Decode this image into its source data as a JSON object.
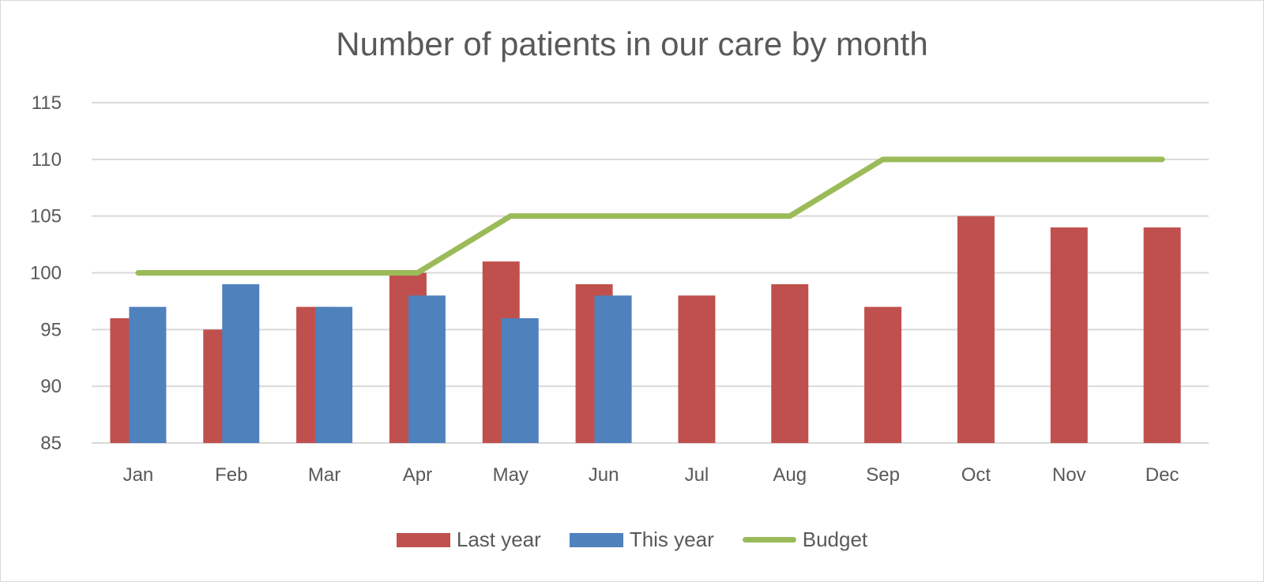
{
  "chart_data": {
    "type": "bar",
    "title": "Number of patients in our care by month",
    "xlabel": "",
    "ylabel": "",
    "ylim": [
      85,
      115
    ],
    "yticks": [
      85,
      90,
      95,
      100,
      105,
      110,
      115
    ],
    "grid": true,
    "legend_position": "bottom",
    "categories": [
      "Jan",
      "Feb",
      "Mar",
      "Apr",
      "May",
      "Jun",
      "Jul",
      "Aug",
      "Sep",
      "Oct",
      "Nov",
      "Dec"
    ],
    "series": [
      {
        "name": "Last year",
        "type": "bar",
        "color": "#c0504d",
        "values": [
          96,
          95,
          97,
          100,
          101,
          99,
          98,
          99,
          97,
          105,
          104,
          104
        ]
      },
      {
        "name": "This year",
        "type": "bar",
        "color": "#4f81bd",
        "values": [
          97,
          99,
          97,
          98,
          96,
          98,
          null,
          null,
          null,
          null,
          null,
          null
        ]
      },
      {
        "name": "Budget",
        "type": "line",
        "color": "#9bbb59",
        "values": [
          100,
          100,
          100,
          100,
          105,
          105,
          105,
          105,
          110,
          110,
          110,
          110
        ]
      }
    ]
  }
}
